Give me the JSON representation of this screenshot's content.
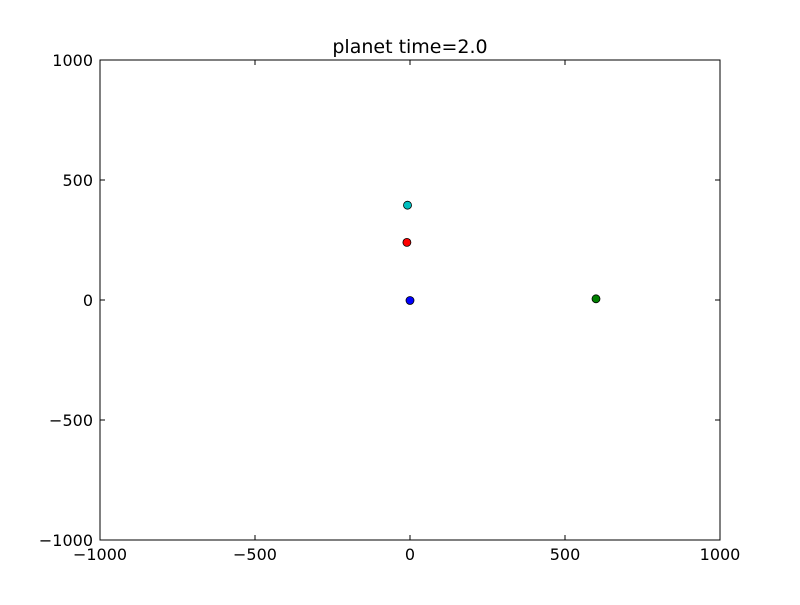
{
  "chart_data": {
    "type": "scatter",
    "title": "planet time=2.0",
    "xlabel": "",
    "ylabel": "",
    "xlim": [
      -1000,
      1000
    ],
    "ylim": [
      -1000,
      1000
    ],
    "xticks": [
      -1000,
      -500,
      0,
      500,
      1000
    ],
    "yticks": [
      -1000,
      -500,
      0,
      500,
      1000
    ],
    "xtick_labels": [
      "−1000",
      "−500",
      "0",
      "500",
      "1000"
    ],
    "ytick_labels": [
      "−1000",
      "−500",
      "0",
      "500",
      "1000"
    ],
    "grid": false,
    "legend": "none",
    "points": [
      {
        "x": 0,
        "y": -2,
        "color": "#0000ff"
      },
      {
        "x": 600,
        "y": 5,
        "color": "#008000"
      },
      {
        "x": -10,
        "y": 240,
        "color": "#ff0000"
      },
      {
        "x": -8,
        "y": 395,
        "color": "#00bfbf"
      }
    ]
  }
}
